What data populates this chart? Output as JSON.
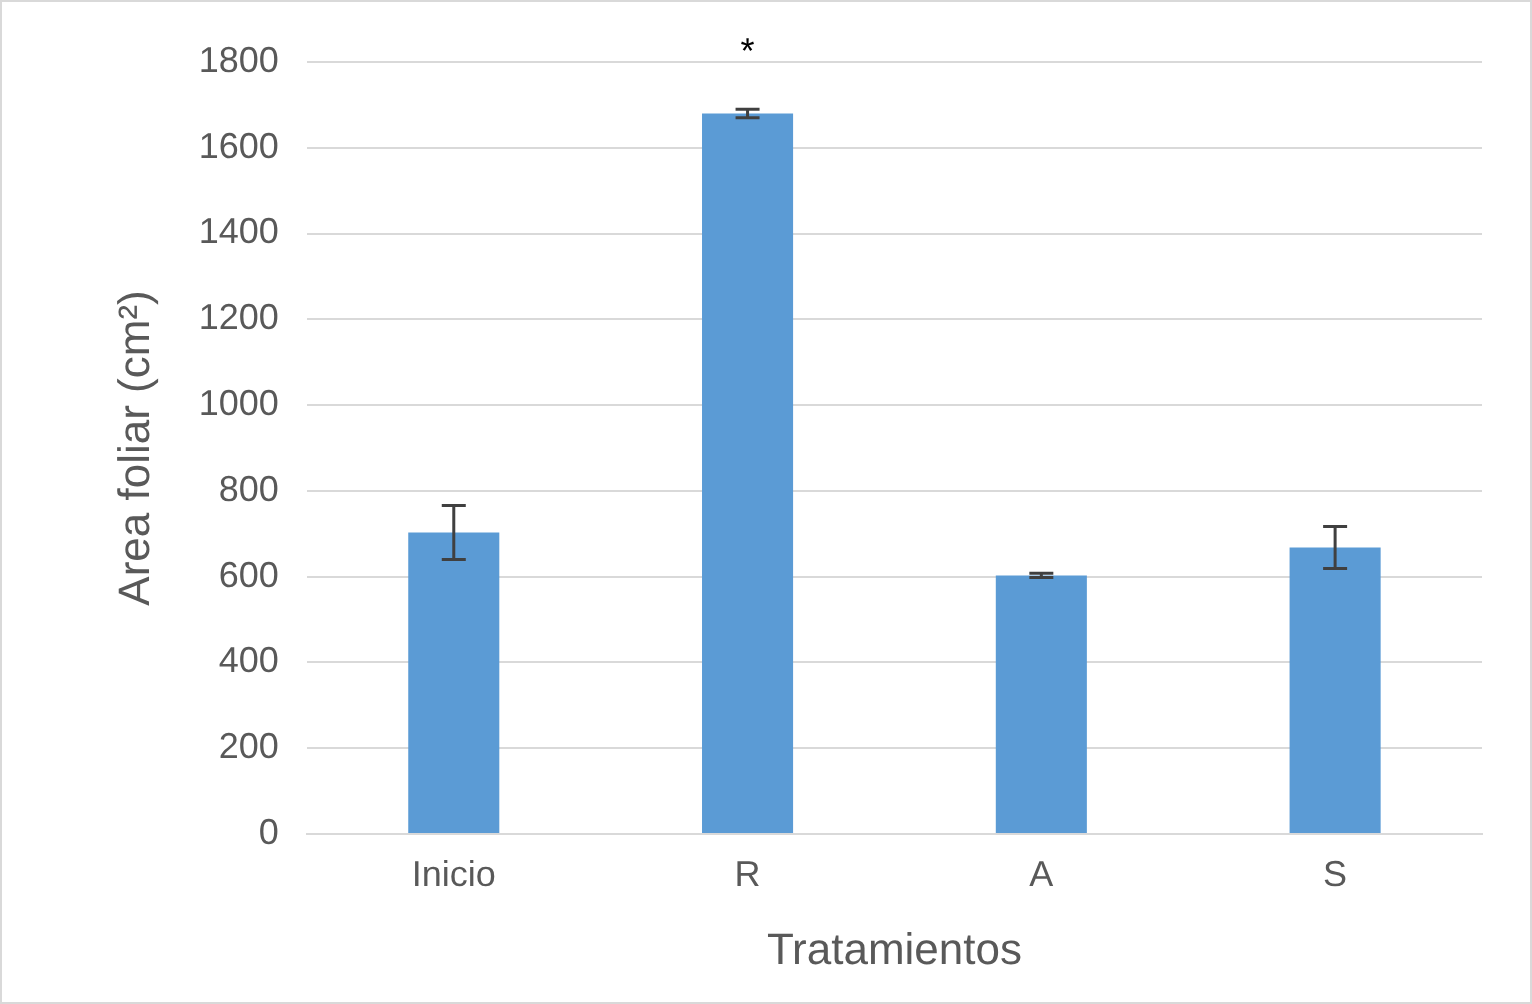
{
  "chart_data": {
    "type": "bar",
    "xlabel": "Tratamientos",
    "ylabel": "Area foliar (cm²)",
    "categories": [
      "Inicio",
      "R",
      "A",
      "S"
    ],
    "values": [
      703,
      1680,
      603,
      668
    ],
    "errors": [
      63,
      10,
      5,
      49
    ],
    "color": "#5b9bd5",
    "ylim": [
      0,
      1800
    ],
    "yticks": [
      0,
      200,
      400,
      600,
      800,
      1000,
      1200,
      1400,
      1600,
      1800
    ],
    "grid": "y",
    "annotations": [
      "*"
    ]
  }
}
